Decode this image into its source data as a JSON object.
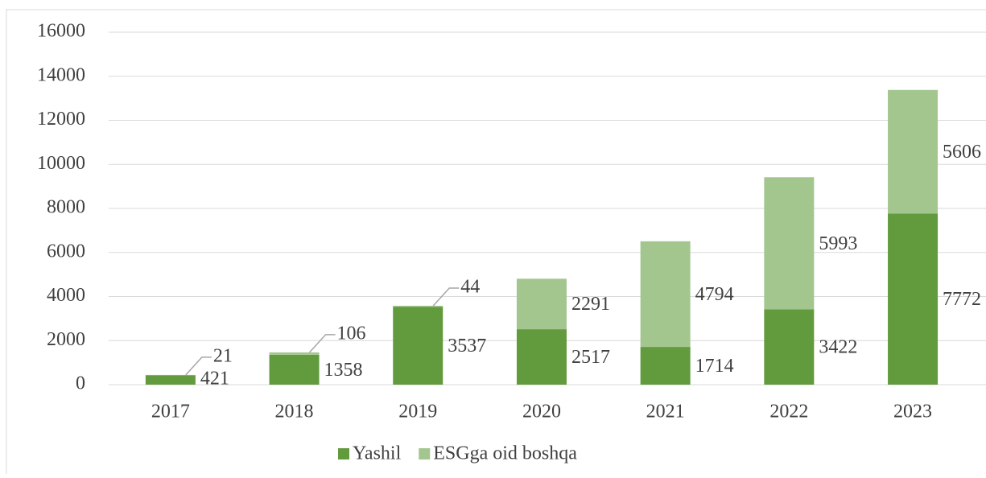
{
  "chart_data": {
    "type": "stacked_bar",
    "categories": [
      "2017",
      "2018",
      "2019",
      "2020",
      "2021",
      "2022",
      "2023"
    ],
    "series": [
      {
        "name": "Yashil",
        "color": "#629a3e",
        "values": [
          421,
          1358,
          3537,
          2517,
          1714,
          3422,
          7772
        ]
      },
      {
        "name": "ESGga oid boshqa",
        "color": "#a3c68f",
        "values": [
          21,
          106,
          44,
          2291,
          4794,
          5993,
          5606
        ]
      }
    ],
    "ylim": [
      0,
      16000
    ],
    "yticks": [
      0,
      2000,
      4000,
      6000,
      8000,
      10000,
      12000,
      14000,
      16000
    ],
    "grid": true,
    "legend": "bottom"
  }
}
